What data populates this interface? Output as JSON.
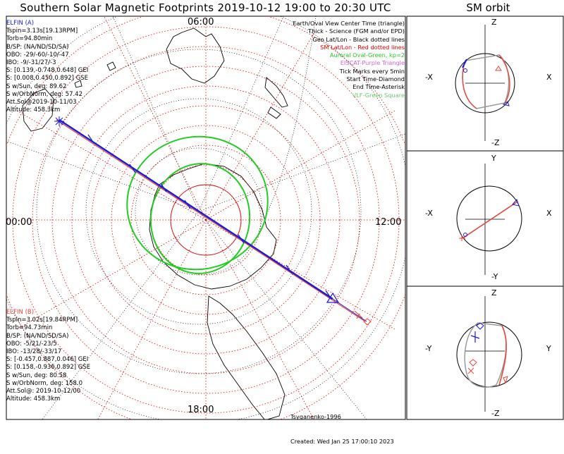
{
  "title": "Southern Solar Magnetic Footprints 2019-10-12 19:00 to 20:30 UTC",
  "sm_orbit_title": "SM orbit",
  "elfin_a": {
    "lines": [
      "ELFIN (A)",
      "Tspin=3.13s[19.13RPM]",
      "Torb=94.80min",
      "B/SP: (NA/ND/SD/SA)",
      "OBO: -29/-60/-10/-47",
      "IBO: -9/-31/27/-3",
      "S: [0.139,-0.748,0.648] GEI",
      "S: [0.008,0.450,0.892] GSE",
      "S w/Sun, deg: 89.62",
      "S w/OrbNorm, deg: 57.42",
      "Att.Sol@2019-10-11/03",
      "Altitude: 458.3km"
    ],
    "color": "#1a1ad9"
  },
  "elfin_b": {
    "lines": [
      "ELFIN (B)",
      "Tspin=3.02s[19.84RPM]",
      "Torb=94.73min",
      "B/SP: (NA/ND/SD/SA)",
      "OBO: -5/21/-23/5",
      "IBO: -13/28/-33/17",
      "S: [-0.457,0.887,0.046] GEI",
      "S: [0.158,-0.936,0.892] GSE",
      "S w/Sun, deg: 80.58",
      "S w/OrbNorm, deg: 158.0",
      "Att.Sol@: 2019-10-12/00",
      "Altitude: 458.3km"
    ],
    "color": "#e8463a"
  },
  "legend": [
    {
      "text": "Earth/Oval View Center Time (triangle)",
      "color": "#000000"
    },
    {
      "text": "Thick - Science (FGM and/or EPD)",
      "color": "#000000"
    },
    {
      "text": "Geo Lat/Lon - Black dotted lines",
      "color": "#000000"
    },
    {
      "text": "SM Lat/Lon - Red dotted lines",
      "color": "#e00000"
    },
    {
      "text": "Auroral Oval-Green, kp=2",
      "color": "#22cc22"
    },
    {
      "text": "EISCAT-Purple Triangle",
      "color": "#cc66cc"
    },
    {
      "text": "Tick Marks every 5min",
      "color": "#000000"
    },
    {
      "text": "Start Time-Diamond",
      "color": "#000000"
    },
    {
      "text": "End Time-Asterisk",
      "color": "#000000"
    },
    {
      "text": "VLF-Green Square",
      "color": "#66cc66"
    }
  ],
  "clock_labels": {
    "top": "06:00",
    "left": "00:00",
    "right": "12:00",
    "bottom": "18:00"
  },
  "credits": [
    "Tsyganenko-1996",
    "Created: Wed Jan 25 17:00:10 2023"
  ],
  "orbit_panels": [
    {
      "top": "Z",
      "bottom": "-Z",
      "left": "-X",
      "right": "X"
    },
    {
      "top": "Y",
      "bottom": "-Y",
      "left": "-X",
      "right": "X"
    },
    {
      "top": "Z",
      "bottom": "-Z",
      "left": "-Y",
      "right": "Y"
    }
  ],
  "colors": {
    "elfin_a": "#1a1ad9",
    "elfin_b": "#e8463a",
    "oval": "#22cc22",
    "sm_grid": "#e00000",
    "geo_grid": "#000000",
    "orbit_path": "#9a9a9a"
  }
}
